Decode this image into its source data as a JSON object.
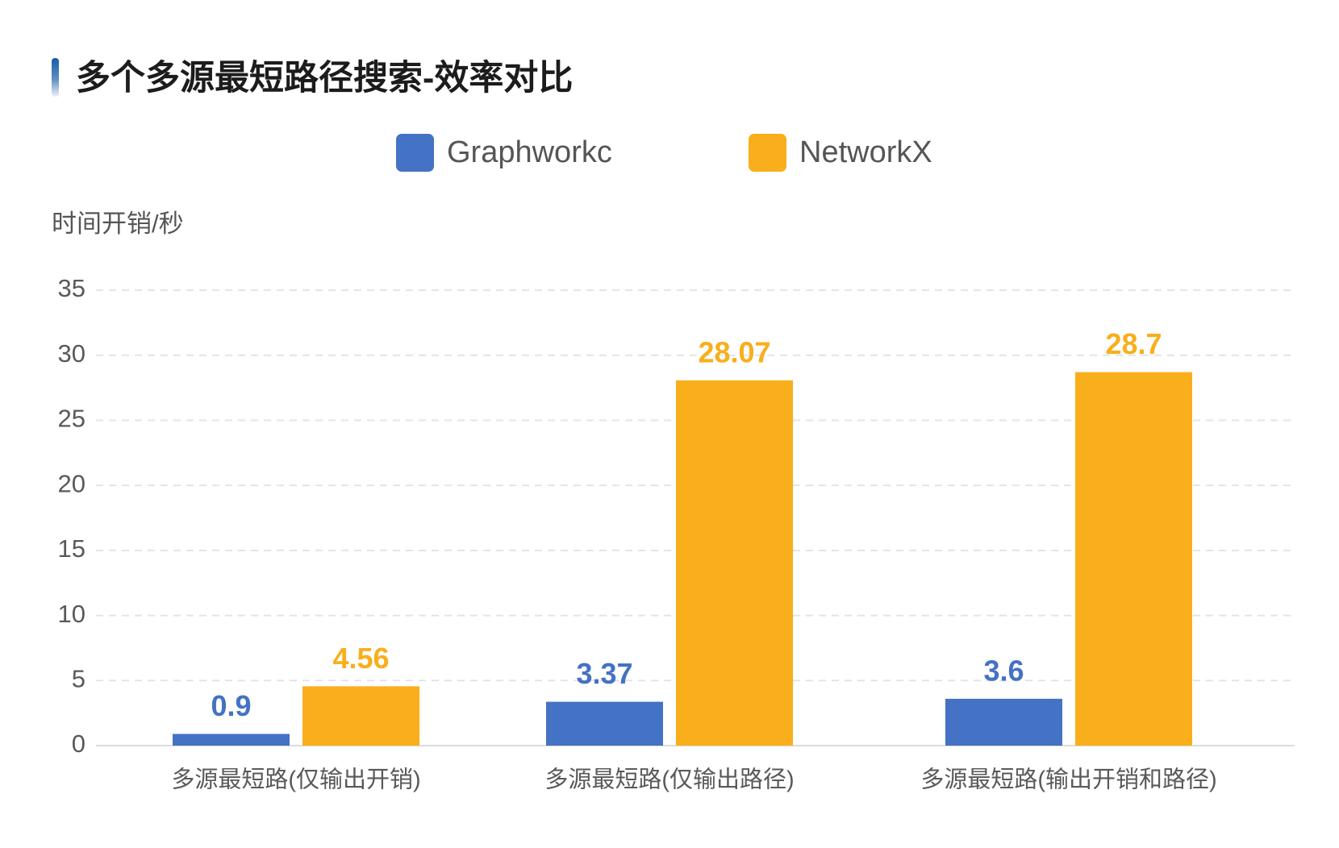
{
  "chart_data": {
    "type": "bar",
    "title": "多个多源最短路径搜索-效率对比",
    "xlabel": "",
    "ylabel": "时间开销/秒",
    "categories": [
      "多源最短路(仅输出开销)",
      "多源最短路(仅输出路径)",
      "多源最短路(输出开销和路径)"
    ],
    "series": [
      {
        "name": "Graphworkc",
        "values": [
          0.9,
          3.37,
          3.6
        ],
        "color": "#4472C4"
      },
      {
        "name": "NetworkX",
        "values": [
          4.56,
          28.07,
          28.7
        ],
        "color": "#F9AE1B"
      }
    ],
    "ylim": [
      0,
      35
    ],
    "yticks": [
      0,
      5,
      10,
      15,
      20,
      25,
      30,
      35
    ],
    "grid": true,
    "legend": "top-center",
    "data_labels": true
  }
}
